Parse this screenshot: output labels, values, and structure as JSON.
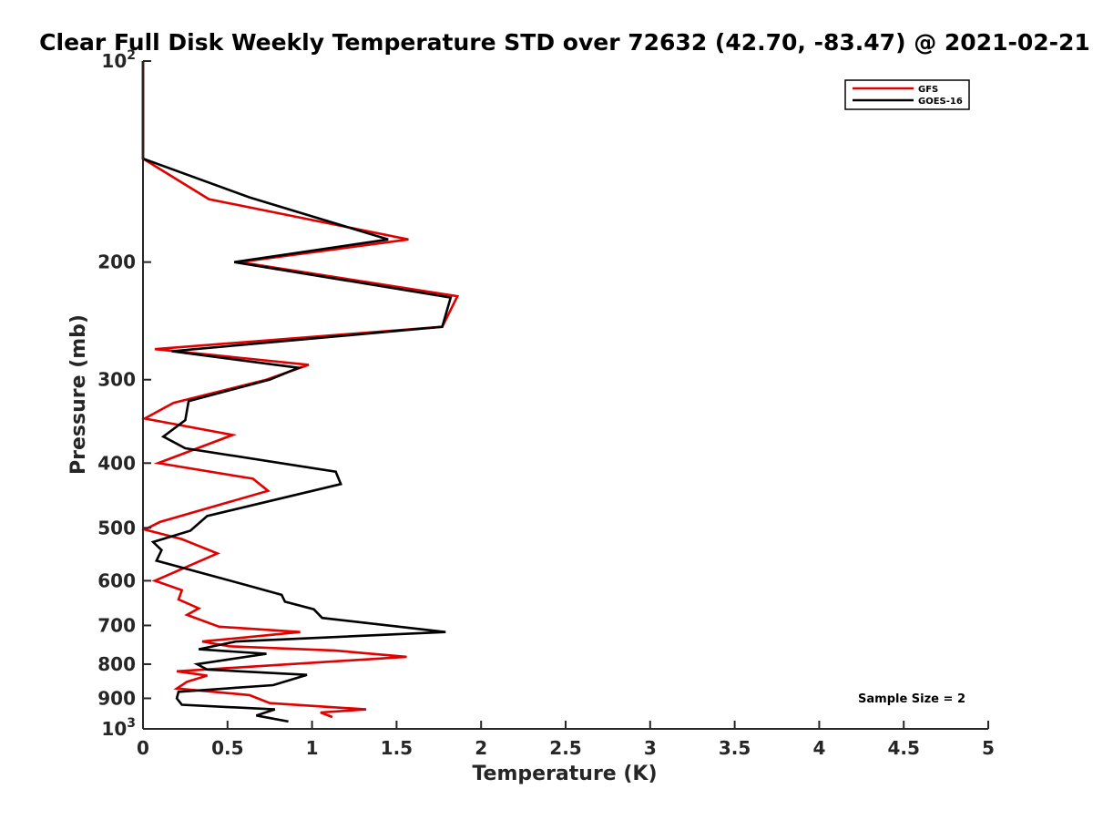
{
  "chart_data": {
    "type": "line",
    "title": "Clear Full Disk Weekly Temperature STD over 72632 (42.70, -83.47) @ 2021-02-21",
    "xlabel": "Temperature (K)",
    "ylabel": "Pressure (mb)",
    "xlim": [
      0,
      5
    ],
    "ylim": [
      100,
      1000
    ],
    "yscale": "log",
    "y_reversed": true,
    "grid": false,
    "legend_position": "top-right",
    "x_ticks": [
      {
        "value": 0,
        "label": "0"
      },
      {
        "value": 0.5,
        "label": "0.5"
      },
      {
        "value": 1,
        "label": "1"
      },
      {
        "value": 1.5,
        "label": "1.5"
      },
      {
        "value": 2,
        "label": "2"
      },
      {
        "value": 2.5,
        "label": "2.5"
      },
      {
        "value": 3,
        "label": "3"
      },
      {
        "value": 3.5,
        "label": "3.5"
      },
      {
        "value": 4,
        "label": "4"
      },
      {
        "value": 4.5,
        "label": "4.5"
      },
      {
        "value": 5,
        "label": "5"
      }
    ],
    "y_ticks": [
      {
        "value": 100,
        "label": "10",
        "sup": "2"
      },
      {
        "value": 200,
        "label": "200",
        "sup": ""
      },
      {
        "value": 300,
        "label": "300",
        "sup": ""
      },
      {
        "value": 400,
        "label": "400",
        "sup": ""
      },
      {
        "value": 500,
        "label": "500",
        "sup": ""
      },
      {
        "value": 600,
        "label": "600",
        "sup": ""
      },
      {
        "value": 700,
        "label": "700",
        "sup": ""
      },
      {
        "value": 800,
        "label": "800",
        "sup": ""
      },
      {
        "value": 900,
        "label": "900",
        "sup": ""
      },
      {
        "value": 1000,
        "label": "10",
        "sup": "3"
      }
    ],
    "series": [
      {
        "name": "GFS",
        "color": "#e00000",
        "points": [
          [
            0,
            100
          ],
          [
            0,
            140
          ],
          [
            0.39,
            161
          ],
          [
            1.57,
            185
          ],
          [
            0.57,
            200
          ],
          [
            1.86,
            225
          ],
          [
            1.77,
            250
          ],
          [
            0.07,
            270
          ],
          [
            0.98,
            285
          ],
          [
            0.73,
            300
          ],
          [
            0.18,
            325
          ],
          [
            0.01,
            343
          ],
          [
            0.53,
            363
          ],
          [
            0.09,
            400
          ],
          [
            0.65,
            422
          ],
          [
            0.74,
            440
          ],
          [
            0.1,
            490
          ],
          [
            0.01,
            503
          ],
          [
            0.23,
            520
          ],
          [
            0.44,
            546
          ],
          [
            0.07,
            600
          ],
          [
            0.23,
            620
          ],
          [
            0.21,
            640
          ],
          [
            0.33,
            660
          ],
          [
            0.26,
            675
          ],
          [
            0.45,
            703
          ],
          [
            0.93,
            716
          ],
          [
            0.35,
            740
          ],
          [
            0.51,
            752
          ],
          [
            1.13,
            763
          ],
          [
            1.56,
            780
          ],
          [
            0.2,
            820
          ],
          [
            0.38,
            832
          ],
          [
            0.26,
            850
          ],
          [
            0.2,
            870
          ],
          [
            0.63,
            890
          ],
          [
            0.75,
            915
          ],
          [
            1.32,
            935
          ],
          [
            1.05,
            945
          ],
          [
            1.12,
            960
          ]
        ]
      },
      {
        "name": "GOES-16",
        "color": "#000000",
        "points": [
          [
            0,
            100
          ],
          [
            0,
            140
          ],
          [
            0.63,
            160
          ],
          [
            1.45,
            185
          ],
          [
            0.54,
            200
          ],
          [
            1.82,
            226
          ],
          [
            1.77,
            250
          ],
          [
            0.17,
            272
          ],
          [
            0.92,
            288
          ],
          [
            0.75,
            300
          ],
          [
            0.27,
            323
          ],
          [
            0.25,
            345
          ],
          [
            0.12,
            365
          ],
          [
            0.25,
            380
          ],
          [
            1.14,
            412
          ],
          [
            1.17,
            430
          ],
          [
            0.38,
            480
          ],
          [
            0.28,
            505
          ],
          [
            0.06,
            525
          ],
          [
            0.11,
            540
          ],
          [
            0.08,
            560
          ],
          [
            0.62,
            610
          ],
          [
            0.82,
            630
          ],
          [
            0.84,
            645
          ],
          [
            1.01,
            662
          ],
          [
            1.06,
            682
          ],
          [
            1.79,
            716
          ],
          [
            0.55,
            740
          ],
          [
            0.33,
            760
          ],
          [
            0.73,
            772
          ],
          [
            0.32,
            800
          ],
          [
            0.38,
            815
          ],
          [
            0.97,
            830
          ],
          [
            0.77,
            860
          ],
          [
            0.21,
            880
          ],
          [
            0.2,
            900
          ],
          [
            0.23,
            920
          ],
          [
            0.78,
            935
          ],
          [
            0.67,
            955
          ],
          [
            0.86,
            975
          ]
        ]
      }
    ],
    "annotation": "Sample Size = 2"
  }
}
